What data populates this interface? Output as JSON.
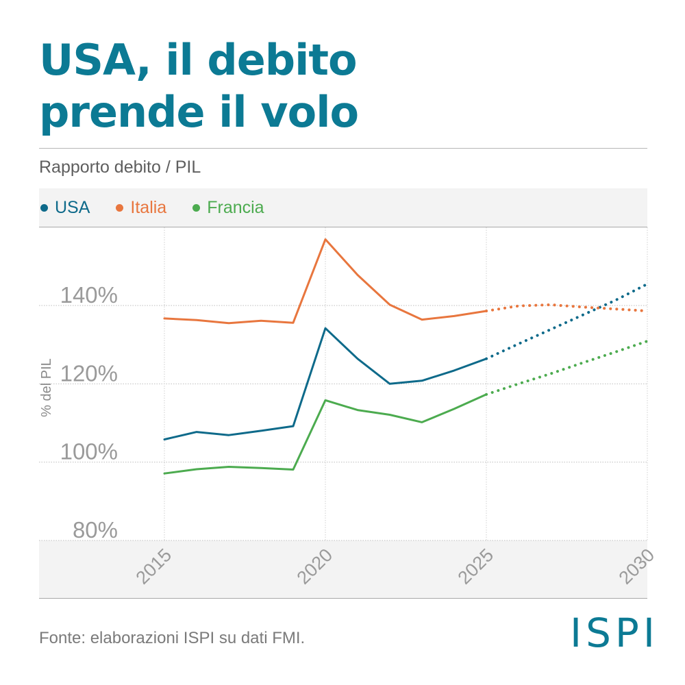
{
  "title_line1": "USA, il debito",
  "title_line2": "prende il volo",
  "subtitle": "Rapporto debito / PIL",
  "source": "Fonte: elaborazioni ISPI su dati FMI.",
  "logo": "ISPI",
  "colors": {
    "USA": "#0e6a8a",
    "Italia": "#e8763e",
    "Francia": "#4cab4f",
    "title": "#0c7a94"
  },
  "chart_data": {
    "type": "line",
    "ylabel": "% del PIL",
    "xlabel": "",
    "xlim": [
      2015,
      2030
    ],
    "ylim": [
      80,
      160
    ],
    "x_ticks": [
      "2015",
      "2020",
      "2025",
      "2030"
    ],
    "y_ticks": [
      "80%",
      "100%",
      "120%",
      "140%"
    ],
    "grid": true,
    "legend_position": "top",
    "projection_from": 2025,
    "series": [
      {
        "name": "USA",
        "color": "#0e6a8a",
        "x": [
          2015,
          2016,
          2017,
          2018,
          2019,
          2020,
          2021,
          2022,
          2023,
          2024,
          2025,
          2026,
          2027,
          2028,
          2029,
          2030
        ],
        "y": [
          105.8,
          107.7,
          106.9,
          108.0,
          109.2,
          134.2,
          126.4,
          120.0,
          120.8,
          123.4,
          126.4,
          130.2,
          133.9,
          137.6,
          141.3,
          145.5
        ]
      },
      {
        "name": "Italia",
        "color": "#e8763e",
        "x": [
          2015,
          2016,
          2017,
          2018,
          2019,
          2020,
          2021,
          2022,
          2023,
          2024,
          2025,
          2026,
          2027,
          2028,
          2029,
          2030
        ],
        "y": [
          136.7,
          136.3,
          135.5,
          136.1,
          135.6,
          156.9,
          147.8,
          140.2,
          136.4,
          137.3,
          138.6,
          139.9,
          140.2,
          139.6,
          139.1,
          138.6
        ]
      },
      {
        "name": "Francia",
        "color": "#4cab4f",
        "x": [
          2015,
          2016,
          2017,
          2018,
          2019,
          2020,
          2021,
          2022,
          2023,
          2024,
          2025,
          2026,
          2027,
          2028,
          2029,
          2030
        ],
        "y": [
          97.1,
          98.2,
          98.8,
          98.5,
          98.1,
          115.8,
          113.3,
          112.1,
          110.2,
          113.6,
          117.3,
          120.0,
          122.6,
          125.4,
          128.1,
          130.9
        ]
      }
    ]
  }
}
